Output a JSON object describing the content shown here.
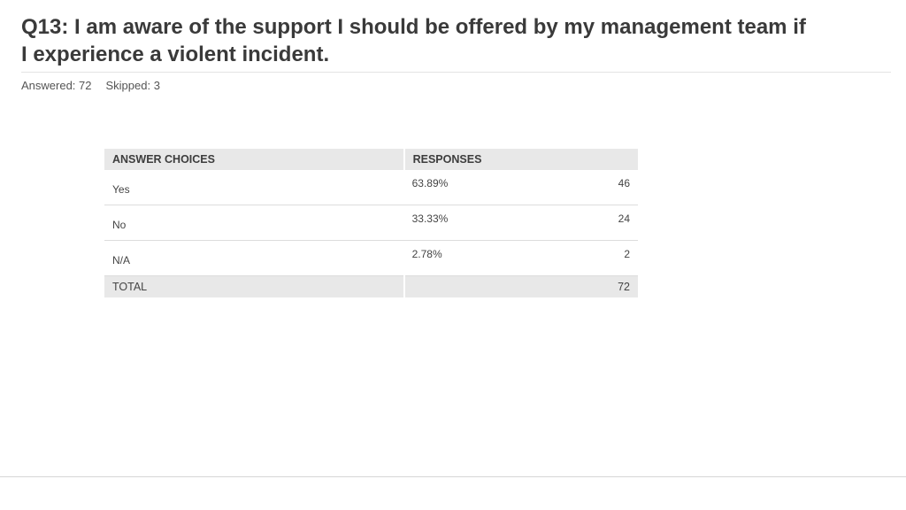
{
  "question": {
    "title": "Q13: I am aware of the support I should be offered by my management team if I experience a violent incident.",
    "answered": "Answered: 72",
    "skipped": "Skipped: 3"
  },
  "table": {
    "headers": {
      "choices": "ANSWER CHOICES",
      "responses": "RESPONSES"
    },
    "rows": [
      {
        "choice": "Yes",
        "percent": "63.89%",
        "count": "46"
      },
      {
        "choice": "No",
        "percent": "33.33%",
        "count": "24"
      },
      {
        "choice": "N/A",
        "percent": "2.78%",
        "count": "2"
      }
    ],
    "total": {
      "label": "TOTAL",
      "count": "72"
    }
  },
  "chart_data": {
    "type": "table",
    "title": "Q13: I am aware of the support I should be offered by my management team if I experience a violent incident.",
    "columns": [
      "ANSWER CHOICES",
      "RESPONSES",
      ""
    ],
    "categories": [
      "Yes",
      "No",
      "N/A"
    ],
    "series": [
      {
        "name": "RESPONSES",
        "values": [
          63.89,
          33.33,
          2.78
        ]
      },
      {
        "name": "",
        "values": [
          46,
          24,
          2
        ]
      }
    ],
    "total": 72
  }
}
